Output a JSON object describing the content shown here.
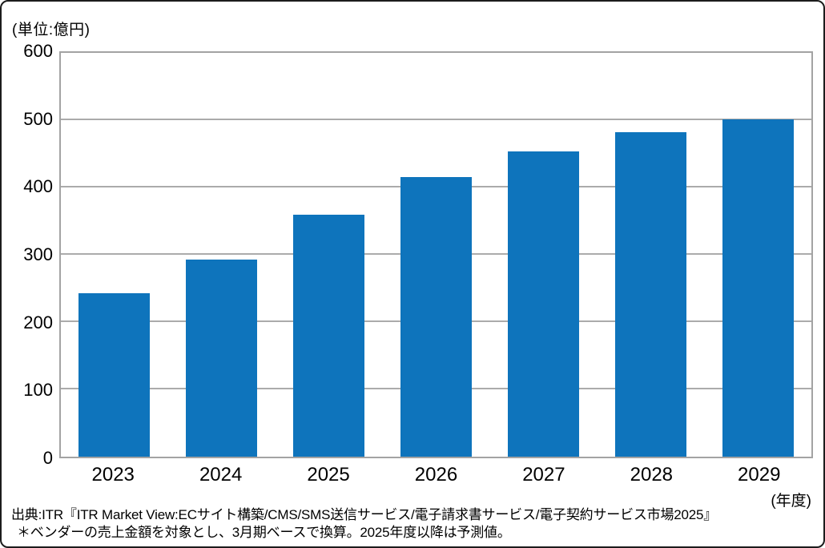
{
  "figure": {
    "unit_label": "(単位:億円)",
    "axis_unit_x": "(年度)",
    "source_line1": "出典:ITR『ITR Market View:ECサイト構築/CMS/SMS送信サービス/電子請求書サービス/電子契約サービス市場2025』",
    "source_line2": "＊ベンダーの売上金額を対象とし、3月期ベースで換算。2025年度以降は予測値。"
  },
  "chart_data": {
    "type": "bar",
    "title": "",
    "categories": [
      "2023",
      "2024",
      "2025",
      "2026",
      "2027",
      "2028",
      "2029"
    ],
    "values": [
      243,
      293,
      359,
      415,
      454,
      482,
      501
    ],
    "xlabel": "(年度)",
    "ylabel": "(単位:億円)",
    "ylim": [
      0,
      600
    ],
    "yticks": [
      0,
      100,
      200,
      300,
      400,
      500,
      600
    ],
    "grid": true,
    "legend": "none",
    "bar_color": "#0e74bc",
    "gridline_color": "#ababab",
    "axis_border_color": "#a3a3a3"
  }
}
